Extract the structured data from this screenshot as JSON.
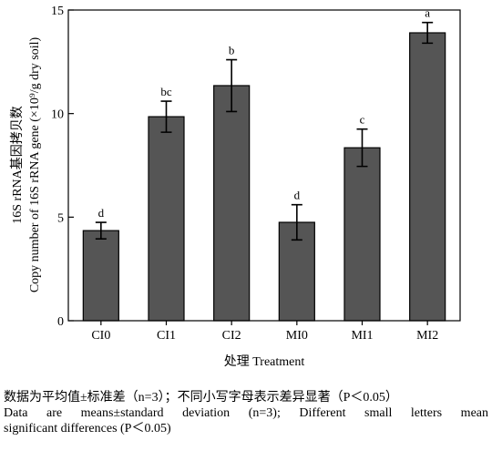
{
  "chart_data": {
    "type": "bar",
    "categories": [
      "CI0",
      "CI1",
      "CI2",
      "MI0",
      "MI1",
      "MI2"
    ],
    "values": [
      4.35,
      9.85,
      11.35,
      4.75,
      8.35,
      13.9
    ],
    "errors": [
      0.4,
      0.75,
      1.25,
      0.85,
      0.9,
      0.5
    ],
    "significance_letters": [
      "d",
      "bc",
      "b",
      "d",
      "c",
      "a"
    ],
    "ylim": [
      0,
      15
    ],
    "yticks": [
      "0",
      "5",
      "10",
      "15"
    ],
    "ylabel_line1": "16S rRNA基因拷贝数",
    "ylabel_line2": "Copy number of 16S rRNA gene (×10⁹/g dry soil)",
    "xlabel": "处理 Treatment",
    "bar_color": "#555555",
    "grid": false,
    "legend": "none"
  },
  "caption": {
    "line1": "数据为平均值±标准差（n=3）；不同小写字母表示差异显著（P＜0.05）",
    "line2": "Data are means±standard deviation (n=3); Different small letters mean",
    "line3": "significant differences (P＜0.05)"
  }
}
